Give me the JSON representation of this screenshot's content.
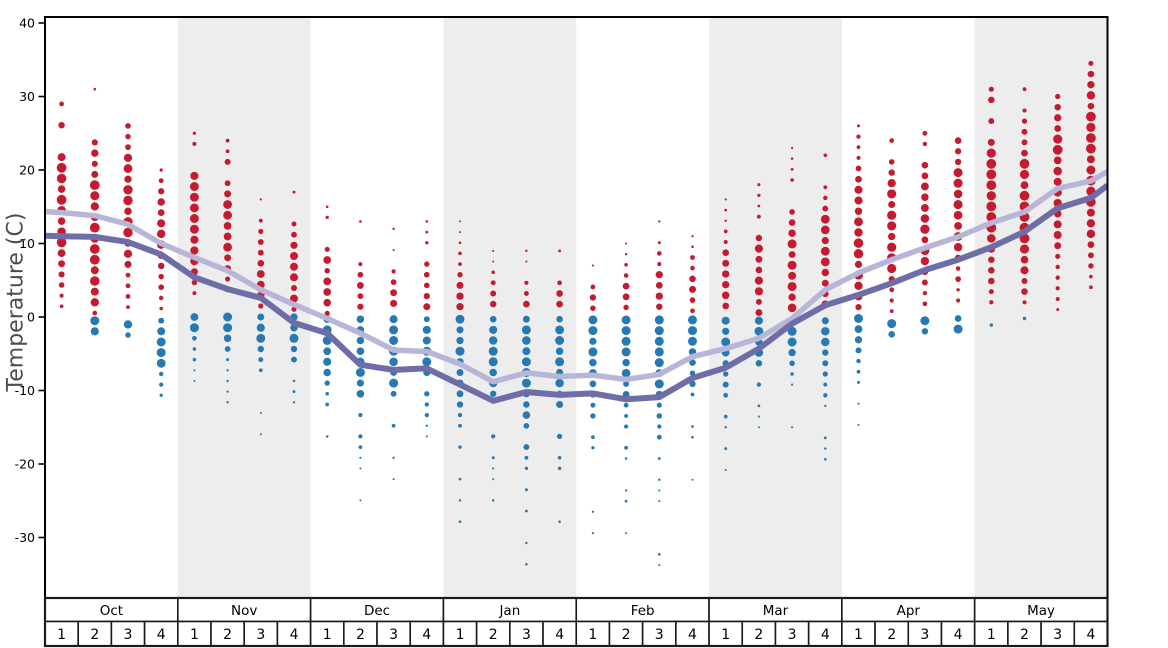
{
  "chart_data": {
    "type": "scatter",
    "subtype": "weekly-temperature-dot-distribution-with-average-lines",
    "ylabel": "Temperature (C)",
    "y_ticks": [
      40,
      30,
      20,
      10,
      0,
      -10,
      -20,
      -30
    ],
    "y_range": [
      -38.5,
      40.8
    ],
    "months": [
      "Oct",
      "Nov",
      "Dec",
      "Jan",
      "Feb",
      "Mar",
      "Apr",
      "May"
    ],
    "week_labels": [
      "1",
      "2",
      "3",
      "4"
    ],
    "shaded_month_indices": [
      1,
      3,
      5,
      7
    ],
    "legend_position": "none",
    "grid": false,
    "series": [
      {
        "name": "average-high-line",
        "color": "#b7b6d9",
        "edge_start": 14.35,
        "edge_end": 19.8,
        "values": [
          14.2,
          13.8,
          12.6,
          10.0,
          8.1,
          6.3,
          3.7,
          1.7,
          -0.2,
          -2.2,
          -4.5,
          -4.7,
          -6.4,
          -8.8,
          -7.6,
          -8.1,
          -7.9,
          -8.5,
          -7.8,
          -5.4,
          -4.3,
          -2.9,
          -0.2,
          3.7,
          6.0,
          7.8,
          9.4,
          10.9,
          12.8,
          14.3,
          17.5,
          18.5
        ]
      },
      {
        "name": "average-low-line",
        "color": "#6f6da8",
        "edge_start": 11.05,
        "edge_end": 17.9,
        "values": [
          11.0,
          10.9,
          10.2,
          8.5,
          5.4,
          3.8,
          2.6,
          -0.8,
          -2.2,
          -6.5,
          -7.2,
          -7.0,
          -9.2,
          -11.4,
          -10.2,
          -10.6,
          -10.4,
          -11.2,
          -10.9,
          -8.3,
          -6.9,
          -4.3,
          -0.9,
          1.6,
          3.0,
          4.6,
          6.4,
          7.8,
          9.5,
          11.6,
          14.8,
          16.2
        ]
      }
    ],
    "dot_columns": {
      "description": "Per week column: [low, high, peak] temperature range of dots; dot size largest near peak, dots spaced ~1.45 C",
      "max_temp_dots": {
        "name": "daily-max-temperature-dots",
        "color": "#c61a2f",
        "columns": [
          [
            0.5,
            29,
            15
          ],
          [
            0.3,
            31,
            12
          ],
          [
            1,
            26,
            16
          ],
          [
            0.7,
            20,
            10
          ],
          [
            3.2,
            25,
            14
          ],
          [
            3,
            24,
            13
          ],
          [
            0.5,
            16,
            5
          ],
          [
            0.5,
            17,
            6
          ],
          [
            0.5,
            15,
            4
          ],
          [
            0.5,
            13,
            2.5
          ],
          [
            0.5,
            12,
            1.5
          ],
          [
            0.5,
            13,
            2
          ],
          [
            0.5,
            13,
            1
          ],
          [
            0.5,
            9,
            1
          ],
          [
            0.5,
            9,
            1.5
          ],
          [
            0.5,
            9,
            2
          ],
          [
            0.5,
            7,
            2
          ],
          [
            0.5,
            10,
            2
          ],
          [
            0.5,
            13,
            3
          ],
          [
            0.5,
            11,
            3.5
          ],
          [
            0.5,
            16,
            3.5
          ],
          [
            0.5,
            18,
            5
          ],
          [
            0.5,
            23,
            6
          ],
          [
            0.5,
            22,
            8
          ],
          [
            0.8,
            26,
            10
          ],
          [
            0.7,
            24,
            11.5
          ],
          [
            0.8,
            25,
            14
          ],
          [
            1,
            24,
            15
          ],
          [
            1,
            31,
            17
          ],
          [
            2,
            31,
            15
          ],
          [
            0.8,
            30,
            19
          ],
          [
            3,
            34.5,
            21
          ]
        ]
      },
      "min_temp_dots": {
        "name": "daily-min-temperature-dots",
        "color": "#2679b2",
        "columns": [
          null,
          [
            -3,
            -0.5,
            -0.5
          ],
          [
            -3.5,
            -1,
            -1
          ],
          [
            -11.5,
            -0.5,
            -4
          ],
          [
            -10,
            0,
            0
          ],
          [
            -13,
            0,
            0
          ],
          [
            -16,
            0,
            -0.5
          ],
          [
            -13,
            0,
            -1.5
          ],
          [
            -17,
            -0.3,
            -3
          ],
          [
            -26,
            -0.3,
            -4
          ],
          [
            -23,
            -0.3,
            -5
          ],
          [
            -17.5,
            -0.3,
            -5
          ],
          [
            -28,
            -0.3,
            -4
          ],
          [
            -26,
            -0.3,
            -5
          ],
          [
            -35,
            -0.3,
            -5
          ],
          [
            -28,
            -0.3,
            -5
          ],
          [
            -30,
            -0.4,
            -2
          ],
          [
            -29.5,
            -0.4,
            -3
          ],
          [
            -34,
            -0.4,
            -3
          ],
          [
            -23,
            -0.4,
            -2
          ],
          [
            -22,
            -0.5,
            -2
          ],
          [
            -16,
            -0.5,
            -2
          ],
          [
            -15,
            -0.5,
            -1
          ],
          [
            -20,
            -0.5,
            -1.5
          ],
          [
            -15,
            -0.2,
            -0.5
          ],
          [
            -3.1,
            -0.9,
            -1
          ],
          [
            -2.5,
            -0.5,
            -1
          ],
          [
            -2.2,
            -0.2,
            -1
          ],
          [
            -1.1,
            -1.1,
            -1.1
          ],
          [
            -0.2,
            -0.2,
            -0.2
          ],
          null,
          null
        ]
      }
    },
    "colors": {
      "background": "#ffffff",
      "shaded_band": "#ededed",
      "axis": "#000000",
      "tick_label": "#000000",
      "axis_title": "#4d4d4d",
      "table_border": "#1a1a1a"
    }
  }
}
